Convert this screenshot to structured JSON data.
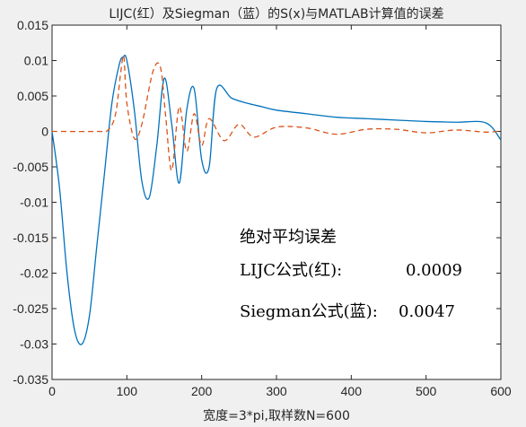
{
  "chart_data": {
    "type": "line",
    "title": "LIJC(红）及Siegman（蓝）的S(x)与MATLAB计算值的误差",
    "xlabel": "宽度=3*pi,取样数N=600",
    "ylabel": "",
    "xlim": [
      0,
      600
    ],
    "ylim": [
      -0.035,
      0.015
    ],
    "x_ticks": [
      "0",
      "100",
      "200",
      "300",
      "400",
      "500",
      "600"
    ],
    "y_ticks": [
      "0.015",
      "0.01",
      "0.005",
      "0",
      "-0.005",
      "-0.01",
      "-0.015",
      "-0.02",
      "-0.025",
      "-0.03",
      "-0.035"
    ],
    "grid": false,
    "series": [
      {
        "color": "#0072bd",
        "line_style": "solid",
        "x": [
          0,
          10,
          20,
          30,
          40,
          50,
          60,
          70,
          80,
          90,
          95,
          100,
          110,
          120,
          130,
          140,
          150,
          160,
          170,
          180,
          190,
          200,
          210,
          220,
          240,
          260,
          280,
          300,
          340,
          380,
          420,
          460,
          500,
          540,
          580,
          600
        ],
        "y": [
          0,
          -0.008,
          -0.02,
          -0.028,
          -0.03,
          -0.026,
          -0.016,
          -0.006,
          0.004,
          0.0095,
          0.0105,
          0.01,
          0.003,
          -0.007,
          -0.0093,
          -0.002,
          0.0075,
          0.001,
          -0.0073,
          0.003,
          0.006,
          -0.004,
          -0.005,
          0.006,
          0.0047,
          0.004,
          0.0035,
          0.003,
          0.0025,
          0.002,
          0.0018,
          0.0016,
          0.0014,
          0.0013,
          0.0012,
          -0.0012
        ]
      },
      {
        "color": "#d95319",
        "line_style": "dashed",
        "x": [
          0,
          60,
          75,
          85,
          92,
          96,
          100,
          110,
          120,
          135,
          145,
          152,
          160,
          170,
          180,
          190,
          200,
          210,
          230,
          250,
          270,
          300,
          340,
          380,
          420,
          460,
          500,
          540,
          580,
          600
        ],
        "y": [
          0,
          0,
          0.0002,
          0.0025,
          0.0085,
          0.0105,
          0.004,
          -0.001,
          0.001,
          0.0085,
          0.009,
          0.002,
          -0.0055,
          0.0035,
          -0.0028,
          0.0025,
          -0.002,
          0.0018,
          -0.0013,
          0.001,
          -0.0008,
          0.0006,
          0.0005,
          -0.0004,
          0.0003,
          0.0003,
          -0.0002,
          0.0002,
          -0.0001,
          0.0001
        ]
      }
    ],
    "annotations": {
      "heading": "绝对平均误差",
      "lijc_label": "LIJC公式(红):",
      "lijc_value": "0.0009",
      "siegman_label": "Siegman公式(蓝):",
      "siegman_value": "0.0047"
    }
  }
}
